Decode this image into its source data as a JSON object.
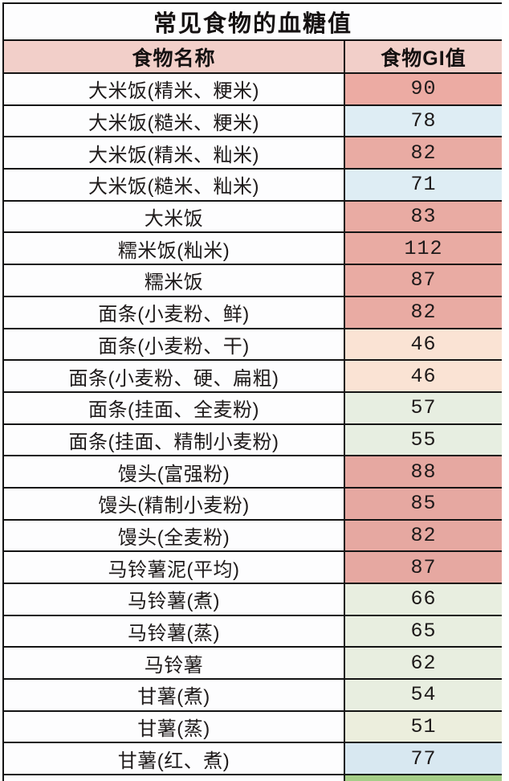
{
  "table": {
    "title": "常见食物的血糖值",
    "header": {
      "food_name": "食物名称",
      "gi_value": "食物GI值"
    },
    "rows": [
      {
        "name": "大米饭(精米、粳米)",
        "gi": "90",
        "gi_bg": "#ecaba3"
      },
      {
        "name": "大米饭(糙米、粳米)",
        "gi": "78",
        "gi_bg": "#deedf4"
      },
      {
        "name": "大米饭(精米、籼米)",
        "gi": "82",
        "gi_bg": "#e9aba3"
      },
      {
        "name": "大米饭(糙米、籼米)",
        "gi": "71",
        "gi_bg": "#deedf4"
      },
      {
        "name": "大米饭",
        "gi": "83",
        "gi_bg": "#e9aba3"
      },
      {
        "name": "糯米饭(籼米)",
        "gi": "112",
        "gi_bg": "#e9aba3"
      },
      {
        "name": "糯米饭",
        "gi": "87",
        "gi_bg": "#e9aba3"
      },
      {
        "name": "面条(小麦粉、鲜)",
        "gi": "82",
        "gi_bg": "#e9aba3"
      },
      {
        "name": "面条(小麦粉、干)",
        "gi": "46",
        "gi_bg": "#fae3d4"
      },
      {
        "name": "面条(小麦粉、硬、扁粗)",
        "gi": "46",
        "gi_bg": "#fae3d4"
      },
      {
        "name": "面条(挂面、全麦粉)",
        "gi": "57",
        "gi_bg": "#e7eee1"
      },
      {
        "name": "面条(挂面、精制小麦粉)",
        "gi": "55",
        "gi_bg": "#e7eee1"
      },
      {
        "name": "馒头(富强粉)",
        "gi": "88",
        "gi_bg": "#e6a8a1"
      },
      {
        "name": "馒头(精制小麦粉)",
        "gi": "85",
        "gi_bg": "#e6a8a1"
      },
      {
        "name": "馒头(全麦粉)",
        "gi": "82",
        "gi_bg": "#e6a8a1"
      },
      {
        "name": "马铃薯泥(平均)",
        "gi": "87",
        "gi_bg": "#e6a8a1"
      },
      {
        "name": "马铃薯(煮)",
        "gi": "66",
        "gi_bg": "#e8eee0"
      },
      {
        "name": "马铃薯(蒸)",
        "gi": "65",
        "gi_bg": "#e8eee0"
      },
      {
        "name": "马铃薯",
        "gi": "62",
        "gi_bg": "#e8eee0"
      },
      {
        "name": "甘薯(煮)",
        "gi": "54",
        "gi_bg": "#e8eee0"
      },
      {
        "name": "甘薯(蒸)",
        "gi": "51",
        "gi_bg": "#eceedd"
      },
      {
        "name": "甘薯(红、煮)",
        "gi": "77",
        "gi_bg": "#d8e8f1"
      }
    ],
    "partial_row": {
      "name_bg": "#fdfdfe",
      "gi_bg": "#a5ce88"
    }
  },
  "colors": {
    "header_bg": "#f2cfc9",
    "salmon": "#e9aba3",
    "light_blue": "#deedf4",
    "peach": "#fae3d4",
    "light_green": "#e8eee0",
    "beige_green": "#eceedd",
    "border": "#141414",
    "row_bg": "#fdfdfe",
    "text": "#1e1a1a"
  },
  "chart_data": {
    "type": "table",
    "title": "常见食物的血糖值",
    "columns": [
      "食物名称",
      "食物GI值"
    ],
    "rows": [
      [
        "大米饭(精米、粳米)",
        90
      ],
      [
        "大米饭(糙米、粳米)",
        78
      ],
      [
        "大米饭(精米、籼米)",
        82
      ],
      [
        "大米饭(糙米、籼米)",
        71
      ],
      [
        "大米饭",
        83
      ],
      [
        "糯米饭(籼米)",
        112
      ],
      [
        "糯米饭",
        87
      ],
      [
        "面条(小麦粉、鲜)",
        82
      ],
      [
        "面条(小麦粉、干)",
        46
      ],
      [
        "面条(小麦粉、硬、扁粗)",
        46
      ],
      [
        "面条(挂面、全麦粉)",
        57
      ],
      [
        "面条(挂面、精制小麦粉)",
        55
      ],
      [
        "馒头(富强粉)",
        88
      ],
      [
        "馒头(精制小麦粉)",
        85
      ],
      [
        "馒头(全麦粉)",
        82
      ],
      [
        "马铃薯泥(平均)",
        87
      ],
      [
        "马铃薯(煮)",
        66
      ],
      [
        "马铃薯(蒸)",
        65
      ],
      [
        "马铃薯",
        62
      ],
      [
        "甘薯(煮)",
        54
      ],
      [
        "甘薯(蒸)",
        51
      ],
      [
        "甘薯(红、煮)",
        77
      ]
    ]
  }
}
